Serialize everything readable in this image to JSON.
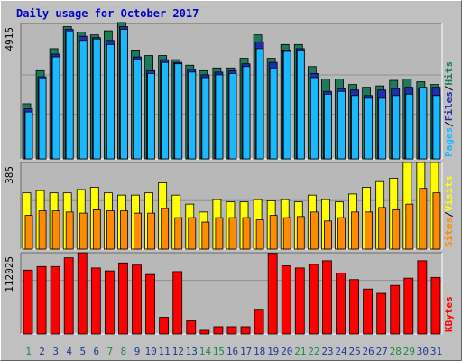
{
  "colors": {
    "frame_bg": "#c0c0c0",
    "plot_bg": "#b8b8b8",
    "title": "#0000cc",
    "hits_back": "#1f7a5a",
    "files_mid": "#1e2fb0",
    "pages_front": "#19b8ff",
    "visits_back": "#ffff00",
    "sites_front": "#ff8c00",
    "kbytes": "#ff0000",
    "weekend_day": "#1a8a4a",
    "weekday_day": "#1a3a9a",
    "gridline": "#909090"
  },
  "chart_data": [
    {
      "type": "bar",
      "title": "Daily usage for October 2017",
      "ymax_label": "4915",
      "ylim": [
        0,
        4915
      ],
      "legend": [
        "Pages",
        "/",
        "Files",
        "/",
        "Hits"
      ],
      "categories": [
        "1",
        "2",
        "3",
        "4",
        "5",
        "6",
        "7",
        "8",
        "9",
        "10",
        "11",
        "12",
        "13",
        "14",
        "15",
        "16",
        "17",
        "18",
        "19",
        "20",
        "21",
        "22",
        "23",
        "24",
        "25",
        "26",
        "27",
        "28",
        "29",
        "30",
        "31"
      ],
      "weekend_days": [
        "1",
        "7",
        "8",
        "14",
        "15",
        "21",
        "22",
        "28",
        "29"
      ],
      "series": [
        {
          "name": "Hits",
          "values": [
            2000,
            3200,
            4000,
            4800,
            4600,
            4500,
            4650,
            4950,
            3950,
            3750,
            3750,
            3600,
            3400,
            3200,
            3300,
            3300,
            3650,
            4500,
            3650,
            4150,
            4150,
            3350,
            2900,
            2900,
            2700,
            2600,
            2650,
            2850,
            2900,
            2800,
            2700
          ]
        },
        {
          "name": "Files",
          "values": [
            1820,
            2980,
            3800,
            4700,
            4450,
            4400,
            4300,
            4800,
            3700,
            3200,
            3600,
            3500,
            3250,
            3050,
            3150,
            3200,
            3450,
            4250,
            3500,
            3950,
            4000,
            3100,
            2450,
            2550,
            2500,
            2300,
            2500,
            2550,
            2600,
            2550,
            2600
          ]
        },
        {
          "name": "Pages",
          "values": [
            1700,
            2900,
            3700,
            4600,
            4300,
            4350,
            4150,
            4700,
            3600,
            3100,
            3500,
            3450,
            3150,
            2950,
            3050,
            3100,
            3350,
            4000,
            3300,
            3900,
            3950,
            2950,
            2350,
            2450,
            2300,
            2200,
            2200,
            2300,
            2350,
            2600,
            2300
          ]
        }
      ]
    },
    {
      "type": "bar",
      "ymax_label": "385",
      "ylim": [
        0,
        385
      ],
      "legend": [
        "Sites",
        "/",
        "Visits"
      ],
      "series": [
        {
          "name": "Visits",
          "values": [
            250,
            260,
            250,
            250,
            265,
            275,
            250,
            240,
            240,
            250,
            295,
            240,
            200,
            165,
            220,
            210,
            210,
            220,
            215,
            220,
            210,
            240,
            220,
            210,
            245,
            275,
            300,
            315,
            385,
            385,
            385
          ]
        },
        {
          "name": "Sites",
          "values": [
            150,
            170,
            170,
            165,
            160,
            175,
            170,
            170,
            160,
            160,
            180,
            140,
            140,
            120,
            140,
            140,
            140,
            130,
            150,
            140,
            145,
            165,
            125,
            140,
            165,
            165,
            185,
            175,
            200,
            270,
            250
          ]
        }
      ]
    },
    {
      "type": "bar",
      "ymax_label": "112025",
      "ylim": [
        0,
        112025
      ],
      "legend": [
        "KBytes"
      ],
      "series": [
        {
          "name": "KBytes",
          "values": [
            88000,
            93000,
            93000,
            105000,
            112000,
            91000,
            87000,
            98000,
            95000,
            82000,
            23000,
            86000,
            18000,
            5000,
            10000,
            10000,
            10000,
            34000,
            111000,
            94000,
            91000,
            96000,
            101000,
            84000,
            75000,
            62000,
            56000,
            67000,
            77000,
            101000,
            78000
          ]
        }
      ]
    }
  ]
}
